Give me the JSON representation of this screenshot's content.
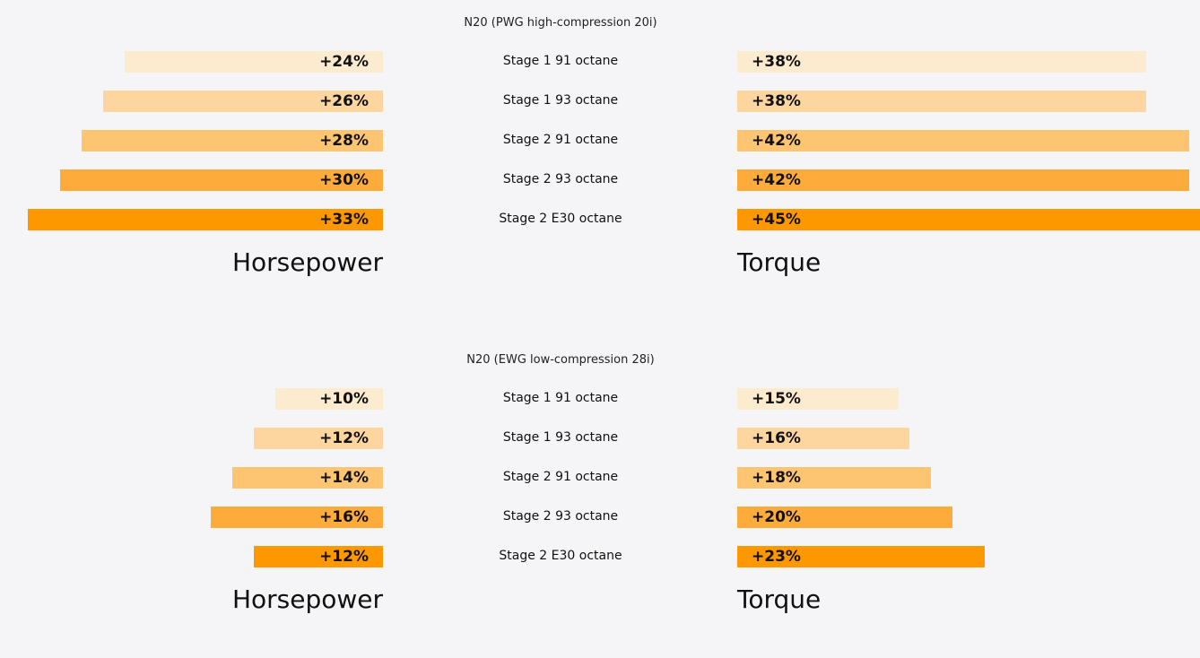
{
  "chart_data": [
    {
      "type": "bar",
      "title": "N20 (PWG high-compression 20i)",
      "categories": [
        "Stage 1 91 octane",
        "Stage 1 93 octane",
        "Stage 2 91 octane",
        "Stage 2 93 octane",
        "Stage 2 E30 octane"
      ],
      "series": [
        {
          "name": "Horsepower",
          "values": [
            24,
            26,
            28,
            30,
            33
          ],
          "labels": [
            "+24%",
            "+26%",
            "+28%",
            "+30%",
            "+33%"
          ]
        },
        {
          "name": "Torque",
          "values": [
            38,
            38,
            42,
            42,
            45
          ],
          "labels": [
            "+38%",
            "+38%",
            "+42%",
            "+42%",
            "+45%"
          ]
        }
      ]
    },
    {
      "type": "bar",
      "title": "N20 (EWG low-compression 28i)",
      "categories": [
        "Stage 1 91 octane",
        "Stage 1 93 octane",
        "Stage 2 91 octane",
        "Stage 2 93 octane",
        "Stage 2 E30 octane"
      ],
      "series": [
        {
          "name": "Horsepower",
          "values": [
            10,
            12,
            14,
            16,
            12
          ],
          "labels": [
            "+10%",
            "+12%",
            "+14%",
            "+16%",
            "+12%"
          ]
        },
        {
          "name": "Torque",
          "values": [
            15,
            16,
            18,
            20,
            23
          ],
          "labels": [
            "+15%",
            "+16%",
            "+18%",
            "+20%",
            "+23%"
          ]
        }
      ]
    }
  ],
  "colors": [
    "#fdebcf",
    "#fdd59f",
    "#fdc471",
    "#fdab3a",
    "#fe9800"
  ]
}
